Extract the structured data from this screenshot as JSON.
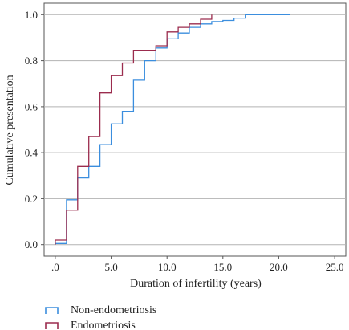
{
  "chart_data": {
    "type": "line",
    "step": true,
    "xlabel": "Duration of infertility (years)",
    "ylabel": "Cumulative presentation",
    "xlim": [
      -1,
      26
    ],
    "ylim": [
      -0.05,
      1.05
    ],
    "xticks": [
      0,
      5,
      10,
      15,
      20,
      25
    ],
    "xtick_labels": [
      ".0",
      "5.0",
      "10.0",
      "15.0",
      "20.0",
      "25.0"
    ],
    "yticks": [
      0,
      0.2,
      0.4,
      0.6,
      0.8,
      1.0
    ],
    "ytick_labels": [
      "0.0",
      "0.2",
      "0.4",
      "0.6",
      "0.8",
      "1.0"
    ],
    "grid": "horizontal",
    "legend_position": "bottom-left",
    "series": [
      {
        "name": "Non-endometriosis",
        "color": "#3b8ede",
        "x": [
          0,
          1,
          2,
          3,
          4,
          5,
          6,
          7,
          8,
          9,
          10,
          11,
          12,
          13,
          14,
          15,
          16,
          17,
          21
        ],
        "y": [
          0.005,
          0.195,
          0.29,
          0.34,
          0.435,
          0.525,
          0.58,
          0.715,
          0.8,
          0.855,
          0.895,
          0.92,
          0.945,
          0.96,
          0.97,
          0.975,
          0.985,
          1.0,
          1.0
        ]
      },
      {
        "name": "Endometriosis",
        "color": "#9b2c4e",
        "x": [
          0,
          1,
          2,
          3,
          4,
          5,
          6,
          7,
          8,
          9,
          10,
          11,
          12,
          13,
          14
        ],
        "y": [
          0.02,
          0.15,
          0.34,
          0.47,
          0.66,
          0.735,
          0.79,
          0.845,
          0.845,
          0.865,
          0.925,
          0.945,
          0.96,
          0.98,
          1.0
        ]
      }
    ]
  }
}
